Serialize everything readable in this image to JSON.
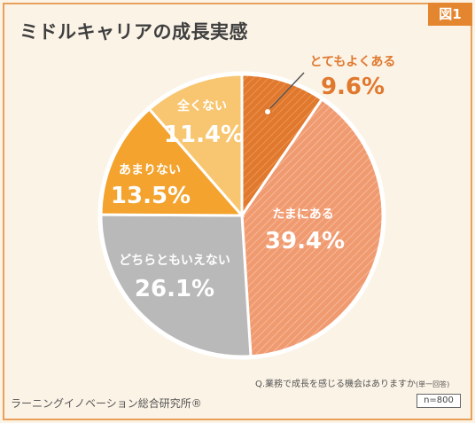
{
  "figure_label": "図1",
  "title": "ミドルキャリアの成長実感",
  "question_main": "Q.業務で成長を感じる機会はありますか",
  "question_suffix": "(単一回答)",
  "sample_size": "n=800",
  "source": "ラーニングイノベーション総合研究所®",
  "chart_data": {
    "type": "pie",
    "title": "ミドルキャリアの成長実感",
    "slices": [
      {
        "label": "とてもよくある",
        "value": 9.6,
        "display": "9.6%",
        "color": "#e0782e",
        "hatched": true
      },
      {
        "label": "たまにある",
        "value": 39.4,
        "display": "39.4%",
        "color": "#f09a70",
        "hatched": true
      },
      {
        "label": "どちらともいえない",
        "value": 26.1,
        "display": "26.1%",
        "color": "#b9b9b9",
        "hatched": false
      },
      {
        "label": "あまりない",
        "value": 13.5,
        "display": "13.5%",
        "color": "#f3a32e",
        "hatched": false
      },
      {
        "label": "全くない",
        "value": 11.4,
        "display": "11.4%",
        "color": "#f8c670",
        "hatched": false
      }
    ],
    "start": "12 o'clock",
    "direction": "clockwise"
  }
}
